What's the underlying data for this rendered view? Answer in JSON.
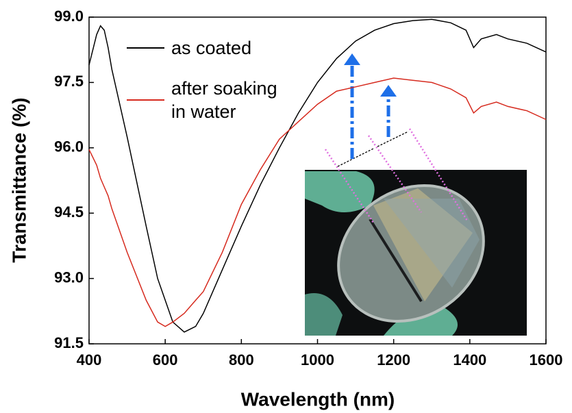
{
  "chart_data": {
    "type": "line",
    "xlabel": "Wavelength (nm)",
    "ylabel": "Transmittance (%)",
    "x": [
      400,
      420,
      430,
      440,
      450,
      460,
      500,
      550,
      580,
      600,
      620,
      650,
      680,
      700,
      750,
      800,
      850,
      900,
      950,
      1000,
      1050,
      1100,
      1150,
      1200,
      1250,
      1300,
      1350,
      1390,
      1410,
      1430,
      1470,
      1500,
      1550,
      1600
    ],
    "series": [
      {
        "name": "as coated",
        "color": "#000000",
        "values": [
          97.9,
          98.6,
          98.8,
          98.7,
          98.3,
          97.8,
          96.25,
          94.2,
          93.0,
          92.5,
          92.0,
          91.77,
          91.9,
          92.2,
          93.2,
          94.2,
          95.15,
          96.0,
          96.8,
          97.5,
          98.05,
          98.45,
          98.7,
          98.85,
          98.92,
          98.95,
          98.87,
          98.7,
          98.3,
          98.5,
          98.6,
          98.5,
          98.4,
          98.2
        ]
      },
      {
        "name": "after soaking in water",
        "color": "#d62a1e",
        "values": [
          95.96,
          95.6,
          95.3,
          95.1,
          94.9,
          94.6,
          93.6,
          92.5,
          92.0,
          91.9,
          92.0,
          92.2,
          92.5,
          92.7,
          93.6,
          94.7,
          95.5,
          96.2,
          96.6,
          97.0,
          97.3,
          97.4,
          97.5,
          97.6,
          97.55,
          97.5,
          97.35,
          97.15,
          96.8,
          96.95,
          97.05,
          96.95,
          96.85,
          96.65
        ]
      }
    ],
    "xlim": [
      400,
      1600
    ],
    "xticks": [
      400,
      600,
      800,
      1000,
      1200,
      1400,
      1600
    ],
    "ylim": [
      91.5,
      99.0
    ],
    "yticks": [
      91.5,
      {
        "value": 93,
        "label": "93.0"
      },
      94.5,
      {
        "value": 96,
        "label": "96.0"
      },
      97.5,
      {
        "value": 99,
        "label": "99.0"
      }
    ]
  }
}
